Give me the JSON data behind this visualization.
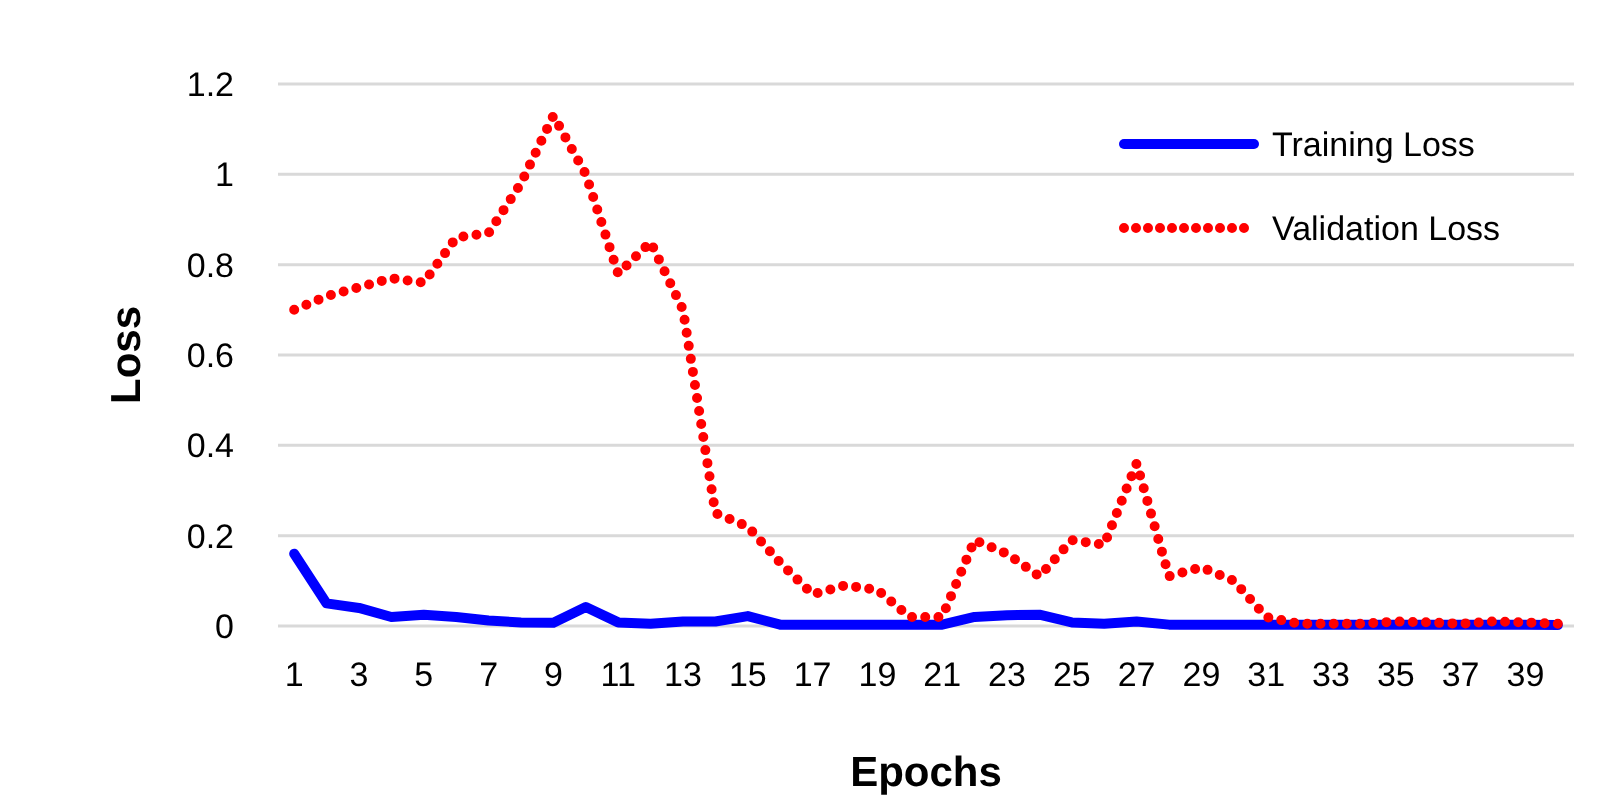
{
  "chart_data": {
    "type": "line",
    "xlabel": "Epochs",
    "ylabel": "Loss",
    "x": [
      1,
      2,
      3,
      4,
      5,
      6,
      7,
      8,
      9,
      10,
      11,
      12,
      13,
      14,
      15,
      16,
      17,
      18,
      19,
      20,
      21,
      22,
      23,
      24,
      25,
      26,
      27,
      28,
      29,
      30,
      31,
      32,
      33,
      34,
      35,
      36,
      37,
      38,
      39,
      40
    ],
    "xlim": [
      0.5,
      40.5
    ],
    "xticks": [
      1,
      3,
      5,
      7,
      9,
      11,
      13,
      15,
      17,
      19,
      21,
      23,
      25,
      27,
      29,
      31,
      33,
      35,
      37,
      39
    ],
    "series": [
      {
        "name": "Training Loss",
        "color": "#0000ff",
        "line_style": "solid",
        "values": [
          0.16,
          0.05,
          0.04,
          0.02,
          0.025,
          0.02,
          0.012,
          0.008,
          0.007,
          0.042,
          0.008,
          0.005,
          0.01,
          0.01,
          0.022,
          0.003,
          0.003,
          0.003,
          0.003,
          0.003,
          0.003,
          0.02,
          0.024,
          0.025,
          0.008,
          0.005,
          0.01,
          0.003,
          0.003,
          0.003,
          0.003,
          0.003,
          0.003,
          0.003,
          0.003,
          0.003,
          0.003,
          0.003,
          0.003,
          0.002
        ]
      },
      {
        "name": "Validation Loss",
        "color": "#ff0000",
        "line_style": "dotted",
        "values": [
          0.7,
          0.73,
          0.75,
          0.77,
          0.76,
          0.86,
          0.87,
          0.98,
          1.13,
          1.0,
          0.78,
          0.85,
          0.7,
          0.25,
          0.22,
          0.14,
          0.07,
          0.09,
          0.08,
          0.02,
          0.02,
          0.19,
          0.16,
          0.11,
          0.19,
          0.18,
          0.36,
          0.11,
          0.13,
          0.1,
          0.02,
          0.005,
          0.005,
          0.005,
          0.01,
          0.008,
          0.005,
          0.01,
          0.008,
          0.005
        ]
      }
    ],
    "ylim": [
      0,
      1.2
    ],
    "yticks": [
      0,
      0.2,
      0.4,
      0.6,
      0.8,
      1,
      1.2
    ],
    "grid": "y",
    "legend": "top right",
    "marker": "none"
  }
}
